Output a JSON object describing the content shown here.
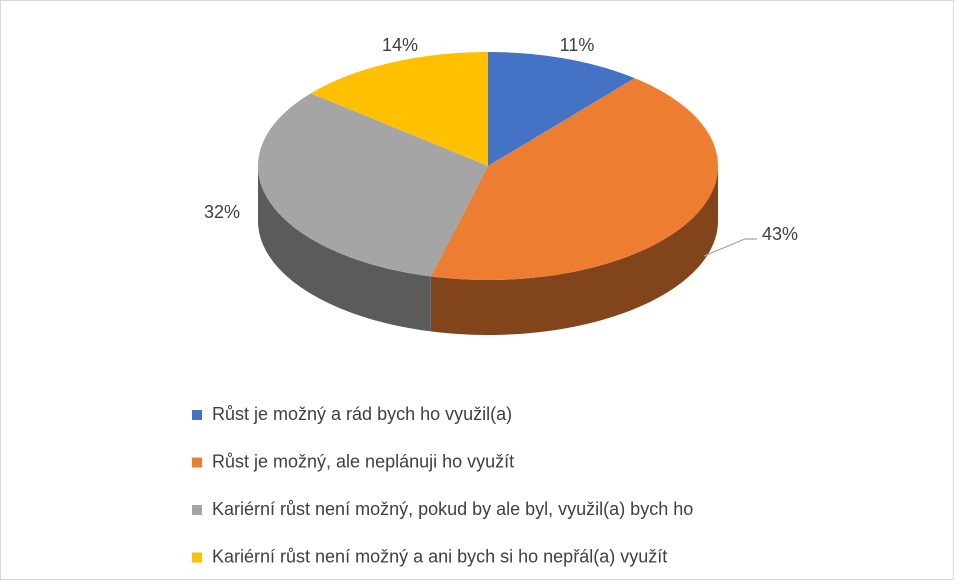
{
  "chart_data": {
    "type": "pie",
    "categories": [
      "Růst je možný a rád bych ho využil(a)",
      "Růst je možný, ale neplánuji ho využít",
      "Kariérní růst není možný, pokud by ale byl, využil(a) bych ho",
      "Kariérní růst není možný a ani bych si ho nepřál(a) využít"
    ],
    "values": [
      11,
      43,
      32,
      14
    ],
    "value_labels": [
      "11%",
      "43%",
      "32%",
      "14%"
    ],
    "colors": [
      "#4472c4",
      "#ed7d31",
      "#a5a5a5",
      "#ffc000"
    ],
    "legend": "bottom"
  }
}
